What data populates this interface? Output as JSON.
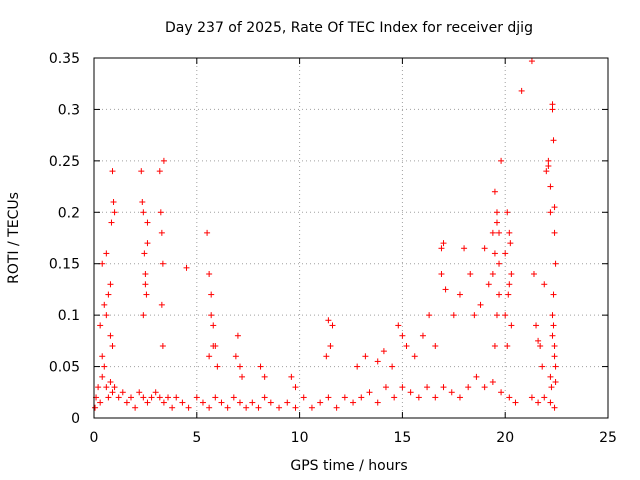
{
  "chart_data": {
    "type": "scatter",
    "title": "Day 237 of 2025, Rate Of TEC Index for receiver djig",
    "xlabel": "GPS time / hours",
    "ylabel": "ROTI / TECUs",
    "xlim": [
      0,
      25
    ],
    "ylim": [
      0,
      0.35
    ],
    "xticks": [
      0,
      5,
      10,
      15,
      20,
      25
    ],
    "xtick_labels": [
      "0",
      "5",
      "10",
      "15",
      "20",
      "25"
    ],
    "yticks": [
      0,
      0.05,
      0.1,
      0.15,
      0.2,
      0.25,
      0.3,
      0.35
    ],
    "ytick_labels": [
      "0",
      "0.05",
      "0.1",
      "0.15",
      "0.2",
      "0.25",
      "0.3",
      "0.35"
    ],
    "grid": true,
    "marker": "+",
    "series": [
      {
        "name": "ROTI",
        "color": "#ff0000",
        "x": [
          0.05,
          0.1,
          0.2,
          0.3,
          0.4,
          0.5,
          0.6,
          0.7,
          0.8,
          0.9,
          1.0,
          1.2,
          1.4,
          1.6,
          1.8,
          2.0,
          2.2,
          2.4,
          2.6,
          2.8,
          3.0,
          3.2,
          3.4,
          3.6,
          3.8,
          4.0,
          4.3,
          4.6,
          5.0,
          5.3,
          5.6,
          5.9,
          6.2,
          6.5,
          6.8,
          7.1,
          7.4,
          7.7,
          8.0,
          8.3,
          8.6,
          9.0,
          9.4,
          9.8,
          10.2,
          10.6,
          11.0,
          11.4,
          11.8,
          12.2,
          12.6,
          13.0,
          13.4,
          13.8,
          14.2,
          14.6,
          15.0,
          15.4,
          15.8,
          16.2,
          16.6,
          17.0,
          17.4,
          17.8,
          18.2,
          18.6,
          19.0,
          19.4,
          19.8,
          20.2,
          20.5,
          21.3,
          21.6,
          21.9,
          22.2,
          22.4,
          0.3,
          0.4,
          0.5,
          0.6,
          0.7,
          0.8,
          0.85,
          0.9,
          0.95,
          1.0,
          0.4,
          0.6,
          0.8,
          0.9,
          2.3,
          2.35,
          2.4,
          2.45,
          2.5,
          2.55,
          2.6,
          2.4,
          2.5,
          2.6,
          3.2,
          3.25,
          3.3,
          3.35,
          3.4,
          3.3,
          3.35,
          4.5,
          5.5,
          5.6,
          5.7,
          5.8,
          5.9,
          6.0,
          5.6,
          5.7,
          5.8,
          6.9,
          7.0,
          7.1,
          7.2,
          8.1,
          8.3,
          9.6,
          9.8,
          11.4,
          11.5,
          11.6,
          11.3,
          12.8,
          13.2,
          13.8,
          14.1,
          14.5,
          14.8,
          15.0,
          15.2,
          15.6,
          16.0,
          16.3,
          16.6,
          16.9,
          17.0,
          17.1,
          16.9,
          17.5,
          17.8,
          18.0,
          18.3,
          18.5,
          18.8,
          19.0,
          19.2,
          19.4,
          19.5,
          19.6,
          19.7,
          19.8,
          19.5,
          19.6,
          19.7,
          19.4,
          19.5,
          19.6,
          19.7,
          20.0,
          20.1,
          20.2,
          20.3,
          20.15,
          20.25,
          20.0,
          20.1,
          20.2,
          20.3,
          21.4,
          21.5,
          21.6,
          21.7,
          21.8,
          21.9,
          22.0,
          22.1,
          22.2,
          22.3,
          22.35,
          22.4,
          22.45,
          22.3,
          22.35,
          22.4,
          22.45,
          22.2,
          22.25,
          22.3,
          22.35,
          22.4,
          22.45,
          20.8,
          21.3,
          22.1,
          22.2,
          22.3,
          22.4
        ],
        "y": [
          0.01,
          0.02,
          0.03,
          0.015,
          0.04,
          0.05,
          0.03,
          0.02,
          0.035,
          0.025,
          0.03,
          0.02,
          0.025,
          0.015,
          0.02,
          0.01,
          0.025,
          0.02,
          0.015,
          0.02,
          0.025,
          0.02,
          0.015,
          0.02,
          0.01,
          0.02,
          0.015,
          0.01,
          0.02,
          0.015,
          0.01,
          0.02,
          0.015,
          0.01,
          0.02,
          0.015,
          0.01,
          0.015,
          0.01,
          0.02,
          0.015,
          0.01,
          0.015,
          0.01,
          0.02,
          0.01,
          0.015,
          0.02,
          0.01,
          0.02,
          0.015,
          0.02,
          0.025,
          0.015,
          0.03,
          0.02,
          0.03,
          0.025,
          0.02,
          0.03,
          0.02,
          0.03,
          0.025,
          0.02,
          0.03,
          0.04,
          0.03,
          0.035,
          0.025,
          0.02,
          0.015,
          0.02,
          0.015,
          0.02,
          0.015,
          0.01,
          0.09,
          0.15,
          0.11,
          0.16,
          0.12,
          0.08,
          0.19,
          0.24,
          0.21,
          0.2,
          0.06,
          0.1,
          0.13,
          0.07,
          0.24,
          0.21,
          0.2,
          0.16,
          0.14,
          0.12,
          0.19,
          0.1,
          0.13,
          0.17,
          0.24,
          0.2,
          0.18,
          0.15,
          0.25,
          0.11,
          0.07,
          0.146,
          0.18,
          0.14,
          0.12,
          0.09,
          0.07,
          0.05,
          0.06,
          0.1,
          0.07,
          0.06,
          0.08,
          0.05,
          0.04,
          0.05,
          0.04,
          0.04,
          0.03,
          0.095,
          0.07,
          0.09,
          0.06,
          0.05,
          0.06,
          0.055,
          0.065,
          0.05,
          0.09,
          0.08,
          0.07,
          0.06,
          0.08,
          0.1,
          0.07,
          0.165,
          0.17,
          0.125,
          0.14,
          0.1,
          0.12,
          0.165,
          0.14,
          0.1,
          0.11,
          0.165,
          0.13,
          0.18,
          0.22,
          0.19,
          0.18,
          0.25,
          0.07,
          0.1,
          0.12,
          0.14,
          0.16,
          0.2,
          0.15,
          0.16,
          0.2,
          0.18,
          0.14,
          0.12,
          0.17,
          0.1,
          0.07,
          0.13,
          0.09,
          0.14,
          0.09,
          0.075,
          0.07,
          0.05,
          0.13,
          0.24,
          0.25,
          0.2,
          0.3,
          0.27,
          0.18,
          0.15,
          0.1,
          0.12,
          0.06,
          0.05,
          0.04,
          0.03,
          0.08,
          0.09,
          0.07,
          0.035,
          0.318,
          0.347,
          0.245,
          0.225,
          0.305,
          0.205
        ]
      }
    ]
  }
}
